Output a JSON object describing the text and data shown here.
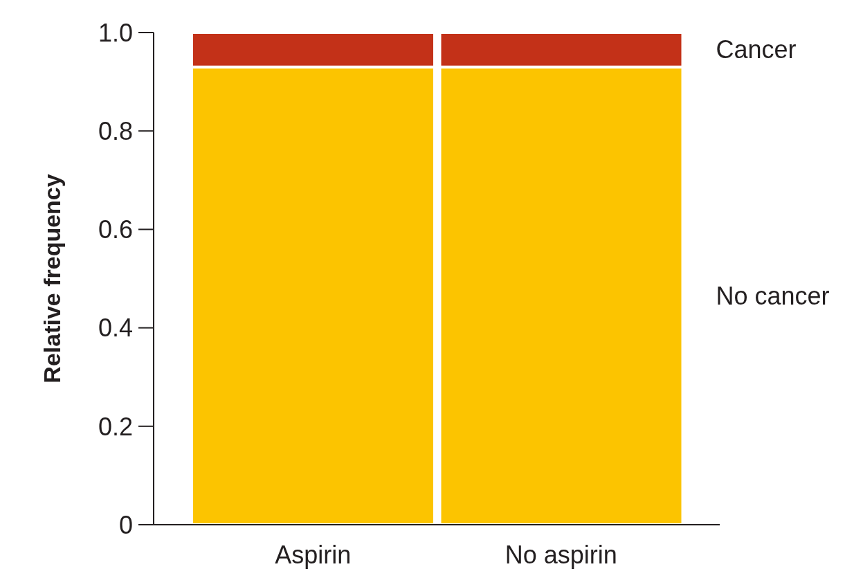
{
  "chart_data": {
    "type": "bar",
    "categories": [
      "Aspirin",
      "No aspirin"
    ],
    "series": [
      {
        "name": "No cancer",
        "color": "#fcc400",
        "values": [
          0.93,
          0.93
        ]
      },
      {
        "name": "Cancer",
        "color": "#c33118",
        "values": [
          0.07,
          0.07
        ]
      }
    ],
    "stacked": true,
    "ylabel": "Relative frequency",
    "ylim": [
      0,
      1
    ],
    "yticks": [
      0,
      0.2,
      0.4,
      0.6,
      0.8,
      {
        "value": 1,
        "label": "1.0"
      }
    ]
  }
}
